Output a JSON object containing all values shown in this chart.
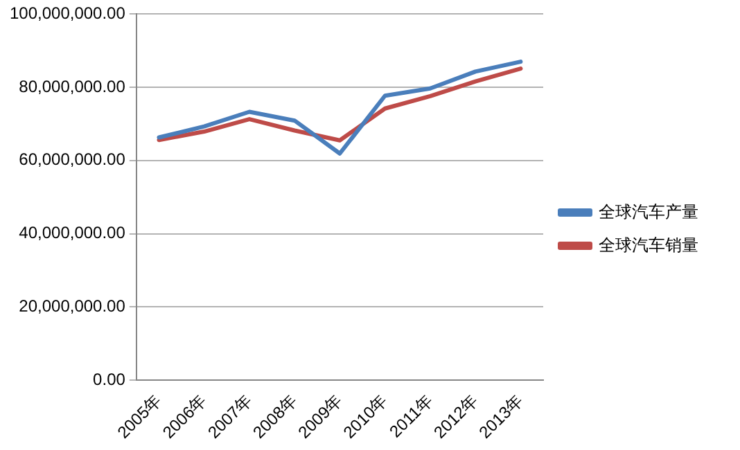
{
  "chart_data": {
    "type": "line",
    "categories": [
      "2005年",
      "2006年",
      "2007年",
      "2008年",
      "2009年",
      "2010年",
      "2011年",
      "2012年",
      "2013年"
    ],
    "series": [
      {
        "name": "全球汽车产量",
        "color": "#4a7ebb",
        "values": [
          66300000,
          69300000,
          73300000,
          70900000,
          61900000,
          77700000,
          79700000,
          84300000,
          87000000
        ]
      },
      {
        "name": "全球汽车销量",
        "color": "#be4b48",
        "values": [
          65600000,
          67900000,
          71300000,
          68200000,
          65500000,
          74200000,
          77600000,
          81600000,
          85100000
        ]
      }
    ],
    "ylim": [
      0,
      100000000
    ],
    "yticks": [
      {
        "value": 0,
        "label": "0.00"
      },
      {
        "value": 20000000,
        "label": "20,000,000.00"
      },
      {
        "value": 40000000,
        "label": "40,000,000.00"
      },
      {
        "value": 60000000,
        "label": "60,000,000.00"
      },
      {
        "value": 80000000,
        "label": "80,000,000.00"
      },
      {
        "value": 100000000,
        "label": "100,000,000.00"
      }
    ],
    "grid": "y",
    "legend": "right",
    "marker": "none",
    "line_style": "solid"
  }
}
